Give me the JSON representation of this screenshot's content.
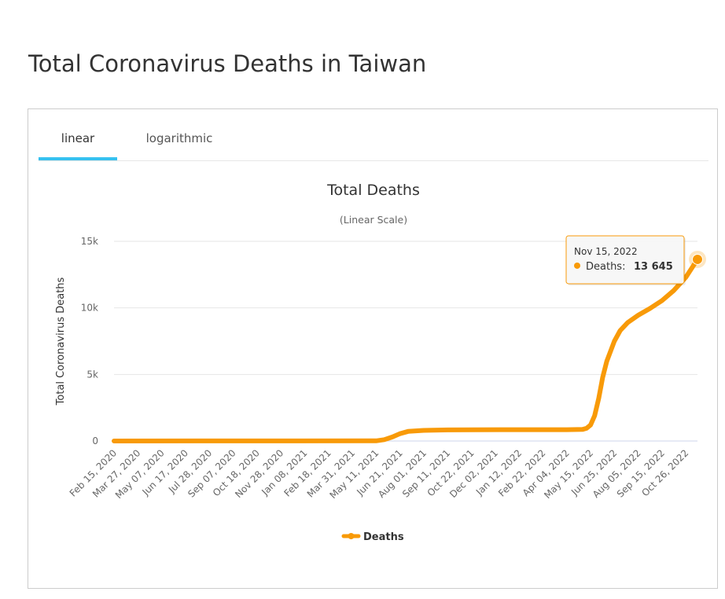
{
  "page": {
    "title": "Total Coronavirus Deaths in Taiwan"
  },
  "tabs": [
    {
      "label": "linear",
      "active": true
    },
    {
      "label": "logarithmic",
      "active": false
    }
  ],
  "colors": {
    "series": "#f89a08",
    "active_tab": "#36c1f0",
    "grid": "#e6e6e6"
  },
  "tooltip": {
    "date": "Nov 15, 2022",
    "label": "Deaths:",
    "value": "13 645"
  },
  "chart_data": {
    "type": "line",
    "title": "Total Deaths",
    "subtitle": "(Linear Scale)",
    "ylabel": "Total Coronavirus Deaths",
    "xlabel": "",
    "ylim": [
      0,
      15000
    ],
    "yticks": [
      0,
      5000,
      10000,
      15000
    ],
    "ytick_labels": [
      "0",
      "5k",
      "10k",
      "15k"
    ],
    "grid": true,
    "legend": "bottom-center",
    "x_tick_labels": [
      "Feb 15, 2020",
      "Mar 27, 2020",
      "May 07, 2020",
      "Jun 17, 2020",
      "Jul 28, 2020",
      "Sep 07, 2020",
      "Oct 18, 2020",
      "Nov 28, 2020",
      "Jan 08, 2021",
      "Feb 18, 2021",
      "Mar 31, 2021",
      "May 11, 2021",
      "Jun 21, 2021",
      "Aug 01, 2021",
      "Sep 11, 2021",
      "Oct 22, 2021",
      "Dec 02, 2021",
      "Jan 12, 2022",
      "Feb 22, 2022",
      "Apr 04, 2022",
      "May 15, 2022",
      "Jun 25, 2022",
      "Aug 05, 2022",
      "Sep 15, 2022",
      "Oct 26, 2022"
    ],
    "series": [
      {
        "name": "Deaths",
        "points": [
          [
            "Feb 15, 2020",
            0
          ],
          [
            "May 11, 2021",
            12
          ],
          [
            "May 25, 2021",
            100
          ],
          [
            "Jun 08, 2021",
            300
          ],
          [
            "Jun 21, 2021",
            550
          ],
          [
            "Jul 05, 2021",
            720
          ],
          [
            "Aug 01, 2021",
            800
          ],
          [
            "Sep 11, 2021",
            830
          ],
          [
            "Oct 22, 2021",
            845
          ],
          [
            "Jan 12, 2022",
            850
          ],
          [
            "Apr 04, 2022",
            853
          ],
          [
            "May 01, 2022",
            870
          ],
          [
            "May 08, 2022",
            950
          ],
          [
            "May 15, 2022",
            1200
          ],
          [
            "May 22, 2022",
            1900
          ],
          [
            "May 29, 2022",
            3200
          ],
          [
            "Jun 05, 2022",
            4800
          ],
          [
            "Jun 12, 2022",
            6000
          ],
          [
            "Jun 25, 2022",
            7500
          ],
          [
            "Jul 05, 2022",
            8300
          ],
          [
            "Jul 18, 2022",
            8900
          ],
          [
            "Aug 05, 2022",
            9450
          ],
          [
            "Aug 25, 2022",
            9950
          ],
          [
            "Sep 15, 2022",
            10550
          ],
          [
            "Oct 05, 2022",
            11300
          ],
          [
            "Oct 26, 2022",
            12300
          ],
          [
            "Nov 15, 2022",
            13645
          ]
        ]
      }
    ]
  }
}
